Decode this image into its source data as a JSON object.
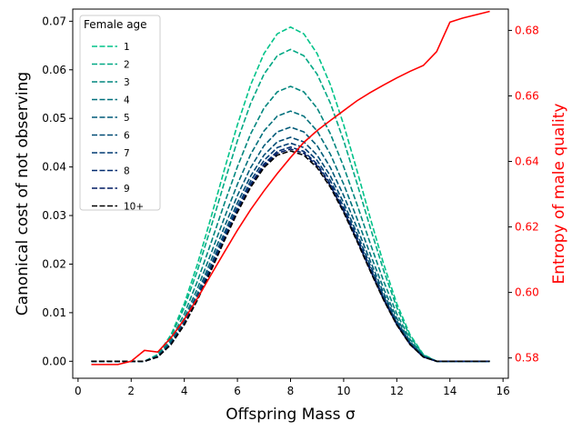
{
  "chart_data": {
    "type": "line",
    "title": "",
    "xlabel": "Offspring Mass σ",
    "ylabel_left": "Canonical cost of not observing",
    "ylabel_right": "Entropy of male quality",
    "xlim": [
      -0.2,
      16.2
    ],
    "ylim_left": [
      -0.0035,
      0.0725
    ],
    "ylim_right": [
      0.5738,
      0.6865
    ],
    "xticks": [
      0,
      2,
      4,
      6,
      8,
      10,
      12,
      14,
      16
    ],
    "xtick_labels": [
      "0",
      "2",
      "4",
      "6",
      "8",
      "10",
      "12",
      "14",
      "16"
    ],
    "yticks_left": [
      0.0,
      0.01,
      0.02,
      0.03,
      0.04,
      0.05,
      0.06,
      0.07
    ],
    "ytick_labels_left": [
      "0.00",
      "0.01",
      "0.02",
      "0.03",
      "0.04",
      "0.05",
      "0.06",
      "0.07"
    ],
    "yticks_right": [
      0.58,
      0.6,
      0.62,
      0.64,
      0.66,
      0.68
    ],
    "ytick_labels_right": [
      "0.58",
      "0.60",
      "0.62",
      "0.64",
      "0.66",
      "0.68"
    ],
    "legend": {
      "title": "Female age",
      "placement": "top-left"
    },
    "right_axis_color": "#ff0000",
    "x": [
      0.5,
      1.0,
      1.5,
      2.0,
      2.5,
      3.0,
      3.5,
      4.0,
      4.5,
      5.0,
      5.5,
      6.0,
      6.5,
      7.0,
      7.5,
      8.0,
      8.5,
      9.0,
      9.5,
      10.0,
      10.5,
      11.0,
      11.5,
      12.0,
      12.5,
      13.0,
      13.5,
      14.0,
      14.5,
      15.0,
      15.5
    ],
    "series": [
      {
        "name": "1",
        "axis": "left",
        "color": "#00c389",
        "dash": true,
        "peak": 0.0688
      },
      {
        "name": "2",
        "axis": "left",
        "color": "#00a884",
        "dash": true,
        "peak": 0.0642
      },
      {
        "name": "3",
        "axis": "left",
        "color": "#00867e",
        "dash": true,
        "peak": 0.0566
      },
      {
        "name": "4",
        "axis": "left",
        "color": "#00707c",
        "dash": true,
        "peak": 0.0515
      },
      {
        "name": "5",
        "axis": "left",
        "color": "#005a78",
        "dash": true,
        "peak": 0.0482
      },
      {
        "name": "6",
        "axis": "left",
        "color": "#004a74",
        "dash": true,
        "peak": 0.0461
      },
      {
        "name": "7",
        "axis": "left",
        "color": "#003a72",
        "dash": true,
        "peak": 0.0449
      },
      {
        "name": "8",
        "axis": "left",
        "color": "#002a6e",
        "dash": true,
        "peak": 0.0441
      },
      {
        "name": "9",
        "axis": "left",
        "color": "#001a62",
        "dash": true,
        "peak": 0.0437
      },
      {
        "name": "10+",
        "axis": "left",
        "color": "#000000",
        "dash": true,
        "peak": 0.0433
      },
      {
        "axis": "right",
        "color": "#ff0000",
        "dash": false,
        "values": [
          0.578,
          0.578,
          0.578,
          0.579,
          0.5823,
          0.5818,
          0.5862,
          0.5918,
          0.5983,
          0.6053,
          0.6122,
          0.619,
          0.6253,
          0.631,
          0.6363,
          0.6412,
          0.6458,
          0.6494,
          0.6525,
          0.6555,
          0.6585,
          0.661,
          0.6633,
          0.6655,
          0.6675,
          0.6693,
          0.6735,
          0.6825,
          0.6838,
          0.6848,
          0.6858
        ]
      }
    ]
  }
}
